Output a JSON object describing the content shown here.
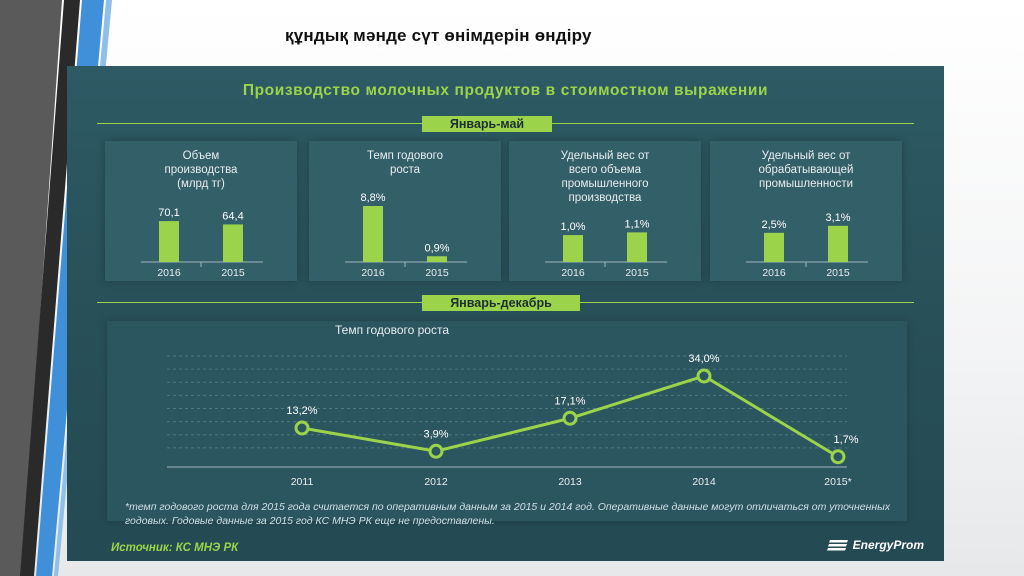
{
  "slide_title": "құндық мәнде сүт өнімдерін өндіру",
  "infographic": {
    "title": "Производство молочных продуктов в стоимостном выражении",
    "period_jan_may": "Январь-май",
    "period_jan_dec": "Январь-декабрь",
    "footnote": "*темп годового роста для 2015 года считается по оперативным данным за 2015 и 2014 год. Оперативные данные могут отличаться от уточненных годовых. Годовые данные за 2015 год КС МНЭ РК еще не предоставлены.",
    "source": "Источник: КС МНЭ РК",
    "logo_text": "EnergyProm"
  },
  "colors": {
    "accent": "#9bd44a",
    "panel": "#285059",
    "card": "#335f69"
  },
  "chart_data": [
    {
      "type": "bar",
      "title": "Объем производства (млрд тг)",
      "categories": [
        "2016",
        "2015"
      ],
      "values": [
        70.1,
        64.4
      ],
      "labels": [
        "70,1",
        "64,4"
      ],
      "ylim": [
        0,
        120
      ]
    },
    {
      "type": "bar",
      "title": "Темп годового роста",
      "categories": [
        "2016",
        "2015"
      ],
      "values": [
        8.8,
        0.9
      ],
      "labels": [
        "8,8%",
        "0,9%"
      ],
      "ylim": [
        0,
        11
      ]
    },
    {
      "type": "bar",
      "title": "Удельный вес от всего объема промышленного производства",
      "categories": [
        "2016",
        "2015"
      ],
      "values": [
        1.0,
        1.1
      ],
      "labels": [
        "1,0%",
        "1,1%"
      ],
      "ylim": [
        0,
        2.6
      ]
    },
    {
      "type": "bar",
      "title": "Удельный вес от обрабатывающей промышленности",
      "categories": [
        "2016",
        "2015"
      ],
      "values": [
        2.5,
        3.1
      ],
      "labels": [
        "2,5%",
        "3,1%"
      ],
      "ylim": [
        0,
        6
      ]
    },
    {
      "type": "line",
      "title": "Темп годового роста",
      "categories": [
        "2011",
        "2012",
        "2013",
        "2014",
        "2015*"
      ],
      "values": [
        13.2,
        3.9,
        17.1,
        34.0,
        1.7
      ],
      "labels": [
        "13,2%",
        "3,9%",
        "17,1%",
        "34,0%",
        "1,7%"
      ],
      "ylim": [
        0,
        40
      ],
      "grid": true
    }
  ]
}
